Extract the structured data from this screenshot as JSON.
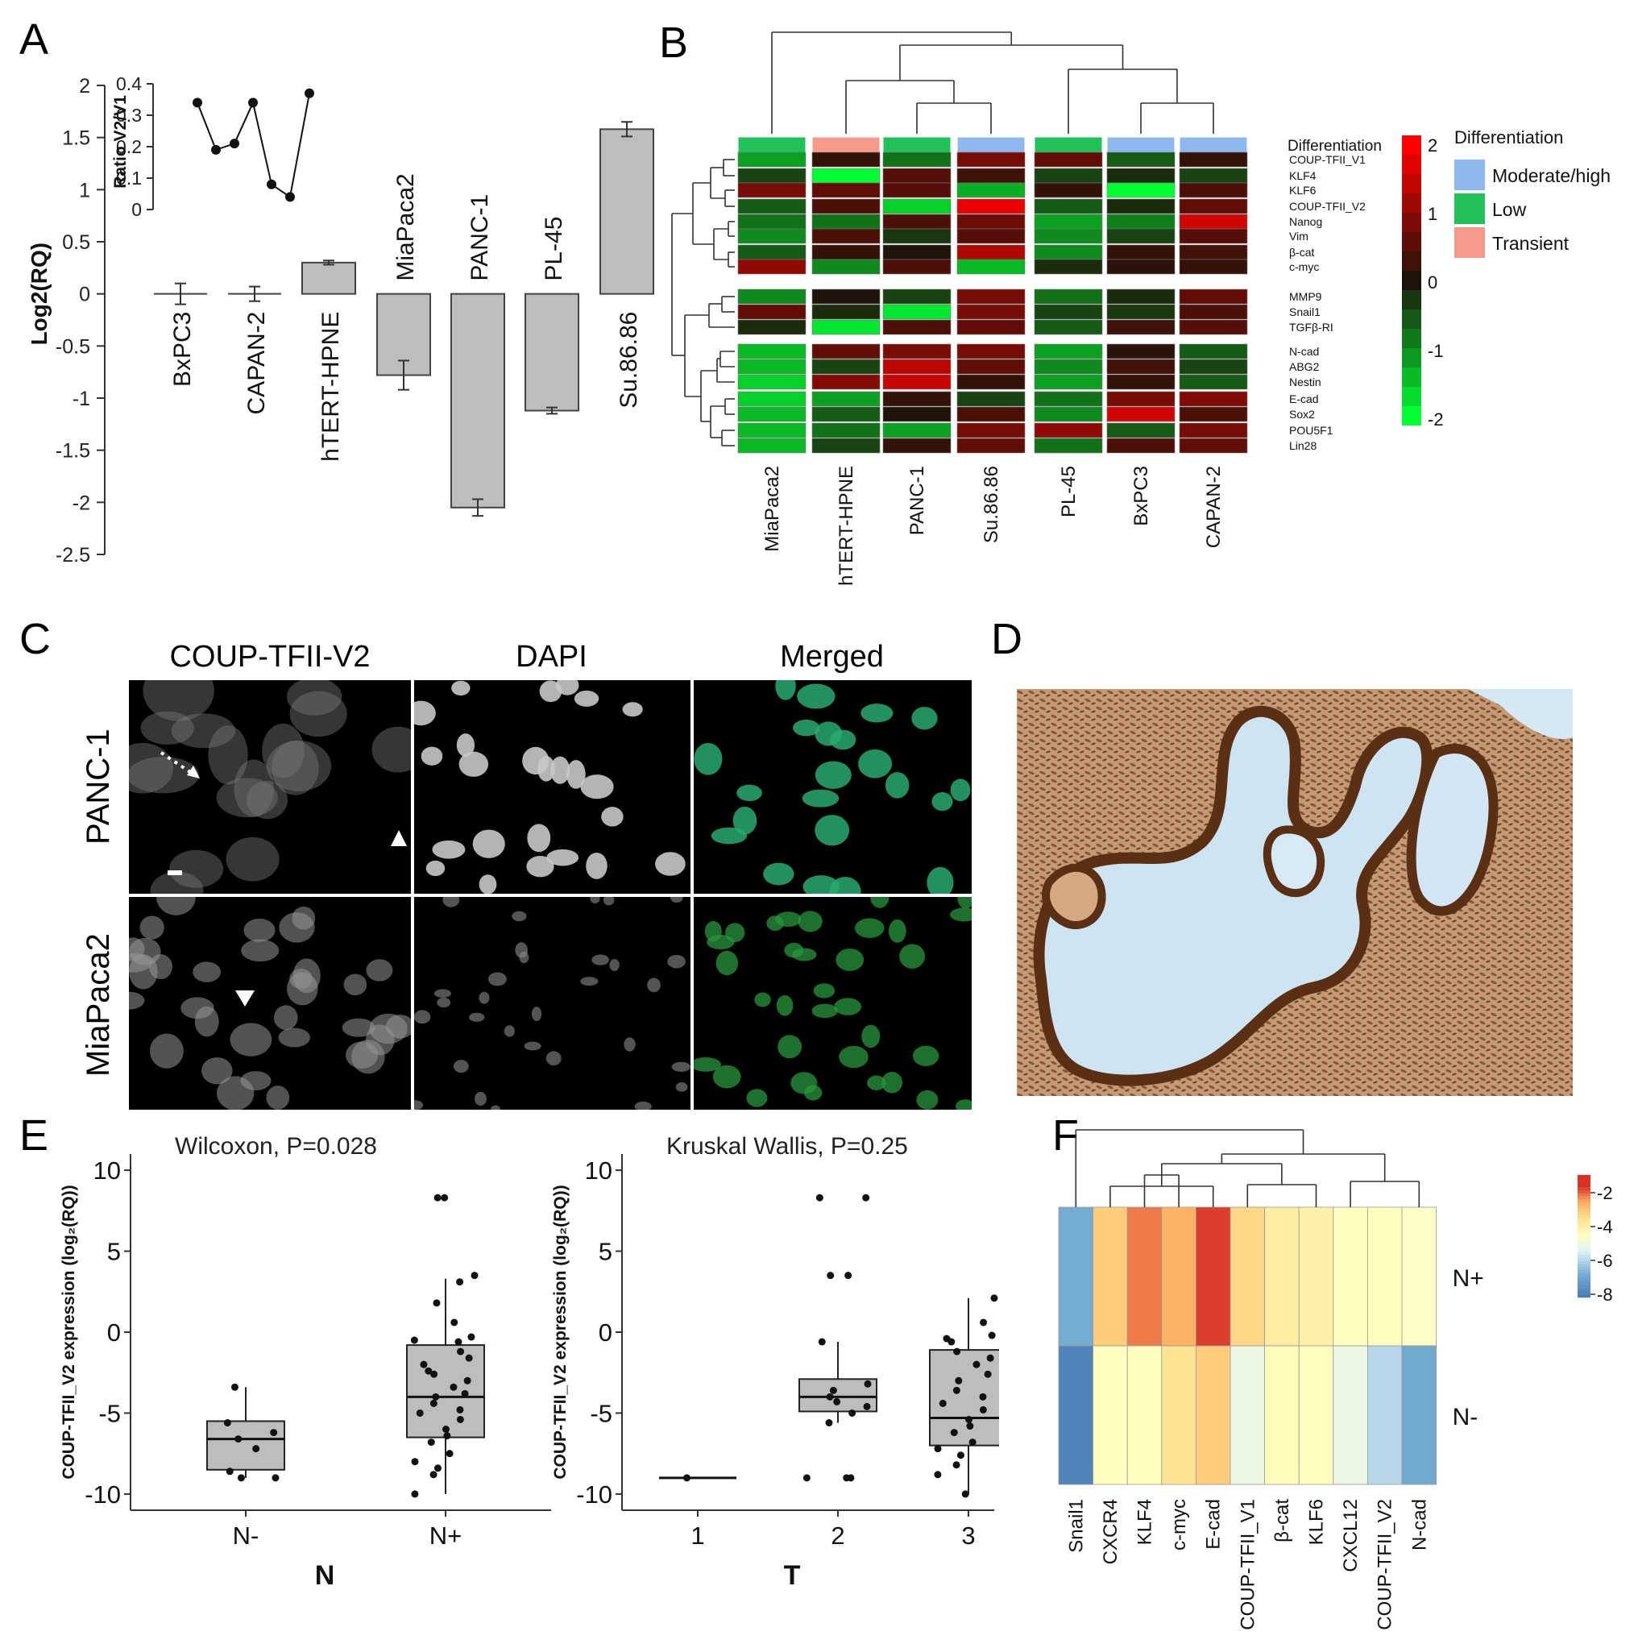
{
  "panels": {
    "a": "A",
    "b": "B",
    "c": "C",
    "d": "D",
    "e": "E",
    "f": "F"
  },
  "colors": {
    "bar": "#bdbdbd",
    "green": "#00c050",
    "red": "#e00000",
    "blue_cat": "#8fb8f0",
    "green_cat": "#22c15a",
    "pink_cat": "#f69b8b"
  },
  "chart_data": [
    {
      "id": "A-main",
      "type": "bar",
      "ylabel": "Log2(RQ)",
      "yticks": [
        "2",
        "1.5",
        "1",
        "0.5",
        "0",
        "-0.5",
        "-1",
        "-1.5",
        "-2",
        "-2.5"
      ],
      "ylim": [
        -2.5,
        2
      ],
      "categories": [
        "BxPC3",
        "CAPAN-2",
        "hTERT-HPNE",
        "MiaPaca2",
        "PANC-1",
        "PL-45",
        "Su.86.86"
      ],
      "values": [
        0.0,
        0.0,
        0.3,
        -0.78,
        -2.05,
        -1.12,
        1.58
      ],
      "errors": [
        0.1,
        0.07,
        0.02,
        0.14,
        0.08,
        0.03,
        0.07
      ]
    },
    {
      "id": "A-inset",
      "type": "line",
      "ylabel": "Ratio V2/V1",
      "yticks": [
        "0.4",
        "0.3",
        "0.2",
        "0.1",
        "0"
      ],
      "ylim": [
        0,
        0.4
      ],
      "values": [
        0.34,
        0.19,
        0.21,
        0.34,
        0.08,
        0.04,
        0.37
      ]
    },
    {
      "id": "B",
      "type": "heatmap",
      "columns": [
        "MiaPaca2",
        "hTERT-HPNE",
        "PANC-1",
        "Su.86.86",
        "PL-45",
        "BxPC3",
        "CAPAN-2"
      ],
      "rows": [
        "COUP-TFII_V1",
        "KLF4",
        "KLF6",
        "COUP-TFII_V2",
        "Nanog",
        "Vim",
        "β-cat",
        "c-myc",
        "MMP9",
        "Snail1",
        "TGFβ-RI",
        "N-cad",
        "ABG2",
        "Nestin",
        "E-cad",
        "Sox2",
        "POU5F1",
        "Lin28"
      ],
      "annotation_label": "Differentiation",
      "annotation": [
        "Low",
        "Transient",
        "Low",
        "Moderate/high",
        "Low",
        "Moderate/high",
        "Moderate/high"
      ],
      "legend_title": "Differentiation",
      "legend_items": [
        "Moderate/high",
        "Low",
        "Transient"
      ],
      "colorbar_ticks": [
        "2",
        "1",
        "0",
        "-1",
        "-2"
      ],
      "values": [
        [
          -1.2,
          0.2,
          -0.8,
          0.8,
          0.6,
          -0.6,
          0.2
        ],
        [
          -0.4,
          -2.0,
          0.5,
          0.3,
          -0.4,
          -0.2,
          -0.4
        ],
        [
          0.8,
          0.6,
          0.5,
          -1.3,
          0.2,
          -2.0,
          0.4
        ],
        [
          -0.6,
          0.4,
          -1.6,
          1.8,
          -0.6,
          -0.2,
          0.6
        ],
        [
          -0.8,
          -0.8,
          0.4,
          0.7,
          -1.2,
          -0.9,
          1.6
        ],
        [
          -1.0,
          0.4,
          -0.3,
          0.5,
          -1.0,
          -0.4,
          0.5
        ],
        [
          -0.6,
          0.2,
          0.0,
          1.3,
          -1.0,
          0.2,
          0.3
        ],
        [
          1.0,
          -1.0,
          0.4,
          -1.4,
          -0.2,
          0.1,
          0.2
        ],
        [
          -1.0,
          0.0,
          -0.4,
          0.8,
          -0.8,
          -0.2,
          0.6
        ],
        [
          0.6,
          -0.2,
          -1.8,
          0.8,
          -0.4,
          -0.3,
          0.4
        ],
        [
          -0.2,
          -1.8,
          0.4,
          0.6,
          -0.6,
          0.3,
          0.5
        ],
        [
          -1.4,
          0.6,
          0.8,
          0.8,
          -1.2,
          0.1,
          -0.6
        ],
        [
          -1.4,
          -0.4,
          1.4,
          0.6,
          -1.0,
          0.3,
          -0.4
        ],
        [
          -1.6,
          0.9,
          1.5,
          0.2,
          -1.2,
          0.2,
          -0.6
        ],
        [
          -1.6,
          -1.2,
          0.2,
          -0.4,
          -0.8,
          0.8,
          0.9
        ],
        [
          -1.4,
          -0.6,
          0.0,
          0.4,
          -1.0,
          1.6,
          0.4
        ],
        [
          -1.4,
          -0.8,
          -1.2,
          0.8,
          1.0,
          -0.6,
          0.8
        ],
        [
          -1.4,
          -0.4,
          0.2,
          0.6,
          -0.8,
          0.4,
          0.6
        ]
      ]
    },
    {
      "id": "E-left",
      "type": "box",
      "title": "Wilcoxon, P=0.028",
      "ylabel": "COUP-TFII_V2 expression (log₂(RQ))",
      "xlabel": "N",
      "categories": [
        "N-",
        "N+"
      ],
      "yticks": [
        "10",
        "5",
        "0",
        "-5",
        "-10"
      ],
      "ylim": [
        -11,
        11
      ],
      "boxes": [
        {
          "q1": -8.5,
          "median": -6.6,
          "q3": -5.5,
          "lo": -9.0,
          "hi": -3.4
        },
        {
          "q1": -6.5,
          "median": -4.0,
          "q3": -0.8,
          "lo": -10.0,
          "hi": 3.3
        }
      ],
      "points": [
        [
          -3.4,
          -5.6,
          -6.2,
          -6.6,
          -7.2,
          -8.6,
          -9.0,
          -9.0
        ],
        [
          8.3,
          8.3,
          3.5,
          3.1,
          1.8,
          0.6,
          -0.6,
          -0.5,
          -0.3,
          -1.2,
          -1.6,
          -2.0,
          -2.4,
          -2.6,
          -3.0,
          -3.4,
          -3.8,
          -4.0,
          -4.4,
          -4.8,
          -5.0,
          -5.4,
          -6.0,
          -6.4,
          -6.8,
          -7.5,
          -8.0,
          -8.4,
          -8.8,
          -10.0
        ]
      ]
    },
    {
      "id": "E-right",
      "type": "box",
      "title": "Kruskal Wallis, P=0.25",
      "ylabel": "COUP-TFII_V2 expression (log₂(RQ))",
      "xlabel": "T",
      "categories": [
        "1",
        "2",
        "3"
      ],
      "yticks": [
        "10",
        "5",
        "0",
        "-5",
        "-10"
      ],
      "ylim": [
        -11,
        11
      ],
      "boxes": [
        {
          "q1": -9.0,
          "median": -9.0,
          "q3": -9.0,
          "lo": -9.0,
          "hi": -9.0
        },
        {
          "q1": -4.9,
          "median": -4.0,
          "q3": -2.9,
          "lo": -5.6,
          "hi": -0.6
        },
        {
          "q1": -7.0,
          "median": -5.3,
          "q3": -1.1,
          "lo": -10.0,
          "hi": 2.1
        }
      ],
      "points": [
        [
          -9.0
        ],
        [
          8.3,
          8.3,
          3.5,
          3.5,
          -0.6,
          -3.2,
          -3.6,
          -4.0,
          -4.3,
          -4.6,
          -5.0,
          -5.6,
          -9.0,
          -9.0,
          -9.0
        ],
        [
          2.1,
          0.6,
          -0.2,
          -0.4,
          -0.6,
          -1.2,
          -1.6,
          -2.0,
          -2.6,
          -3.0,
          -3.6,
          -4.0,
          -4.4,
          -4.8,
          -5.4,
          -5.8,
          -6.2,
          -6.8,
          -7.2,
          -7.6,
          -8.2,
          -8.8,
          -10.0
        ]
      ]
    },
    {
      "id": "F",
      "type": "heatmap",
      "columns": [
        "Snail1",
        "CXCR4",
        "KLF4",
        "c-myc",
        "E-cad",
        "COUP-TFII_V1",
        "β-cat",
        "KLF6",
        "CXCL12",
        "COUP-TFII_V2",
        "N-cad"
      ],
      "rows": [
        "N+",
        "N-"
      ],
      "colorbar_ticks": [
        "-2",
        "-4",
        "-6",
        "-8"
      ],
      "values": [
        [
          -7.5,
          -3.6,
          -2.6,
          -3.1,
          -2.1,
          -3.8,
          -4.4,
          -4.5,
          -5.0,
          -5.0,
          -5.1
        ],
        [
          -8.6,
          -5.0,
          -5.0,
          -4.1,
          -3.6,
          -5.6,
          -4.9,
          -5.0,
          -5.6,
          -6.6,
          -7.6
        ]
      ]
    }
  ],
  "panel_c": {
    "col_titles": [
      "COUP-TFII-V2",
      "DAPI",
      "Merged"
    ],
    "row_titles": [
      "PANC-1",
      "MiaPaca2"
    ]
  }
}
